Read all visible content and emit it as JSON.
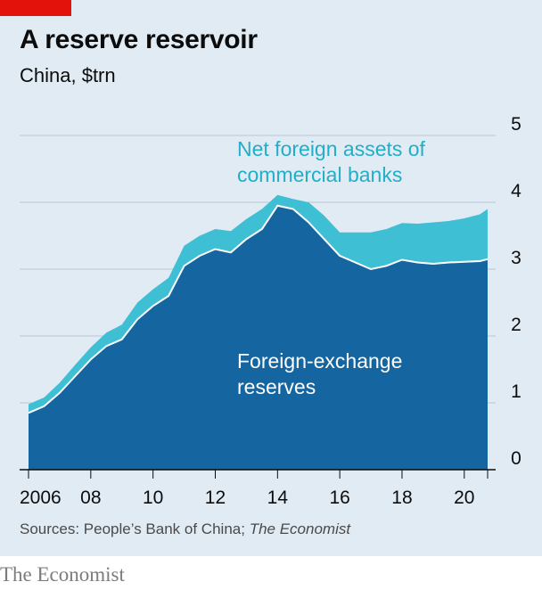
{
  "header": {
    "title": "A reserve reservoir",
    "subtitle": "China, $trn"
  },
  "footer": {
    "source_prefix": "Sources: People’s Bank of China; ",
    "source_italic": "The Economist",
    "brand": "The Economist"
  },
  "colors": {
    "background": "#e1ebf3",
    "net_assets": "#3ebfd3",
    "fx_reserves": "#1565a0",
    "gridline": "#b7c6d3",
    "brand_red": "#e3120b"
  },
  "chart_data": {
    "type": "area",
    "stacked": true,
    "title": "A reserve reservoir",
    "subtitle": "China, $trn",
    "ylim": [
      0,
      5
    ],
    "yticks": [
      0,
      1,
      2,
      3,
      4,
      5
    ],
    "xlim": [
      2006.0,
      2021.2
    ],
    "xticks": [
      2006,
      2008,
      2010,
      2012,
      2014,
      2016,
      2018,
      2020
    ],
    "xtick_labels": [
      "2006",
      "08",
      "10",
      "12",
      "14",
      "16",
      "18",
      "20"
    ],
    "grid": "horizontal",
    "annotations": [
      {
        "lines": [
          "Net foreign assets of",
          "commercial banks"
        ],
        "series": "Net foreign assets of commercial banks"
      },
      {
        "lines": [
          "Foreign-exchange",
          "reserves"
        ],
        "series": "Foreign-exchange reserves"
      }
    ],
    "x": [
      2006.0,
      2006.5,
      2007.0,
      2007.5,
      2008.0,
      2008.5,
      2009.0,
      2009.5,
      2010.0,
      2010.5,
      2011.0,
      2011.5,
      2012.0,
      2012.5,
      2013.0,
      2013.5,
      2014.0,
      2014.5,
      2015.0,
      2015.5,
      2016.0,
      2016.5,
      2017.0,
      2017.5,
      2018.0,
      2018.5,
      2019.0,
      2019.5,
      2020.0,
      2020.5,
      2020.75
    ],
    "series": [
      {
        "name": "Foreign-exchange reserves",
        "values": [
          0.85,
          0.95,
          1.15,
          1.4,
          1.65,
          1.85,
          1.95,
          2.25,
          2.45,
          2.6,
          3.05,
          3.2,
          3.3,
          3.25,
          3.45,
          3.6,
          3.95,
          3.9,
          3.7,
          3.45,
          3.2,
          3.1,
          3.0,
          3.05,
          3.14,
          3.1,
          3.08,
          3.1,
          3.11,
          3.12,
          3.15
        ]
      },
      {
        "name": "Net foreign assets of commercial banks",
        "values": [
          0.13,
          0.13,
          0.15,
          0.17,
          0.18,
          0.2,
          0.22,
          0.25,
          0.25,
          0.27,
          0.3,
          0.3,
          0.3,
          0.32,
          0.3,
          0.3,
          0.16,
          0.15,
          0.3,
          0.35,
          0.35,
          0.45,
          0.55,
          0.55,
          0.55,
          0.58,
          0.62,
          0.62,
          0.65,
          0.7,
          0.75
        ]
      }
    ]
  }
}
